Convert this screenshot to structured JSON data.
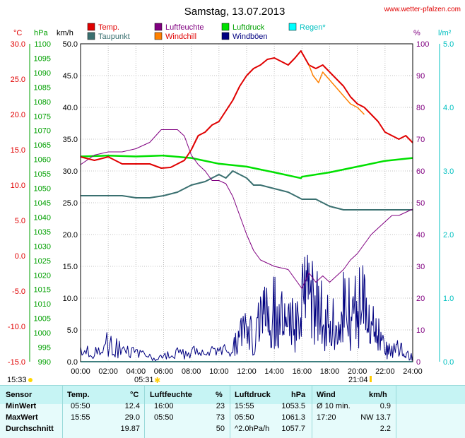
{
  "title": "Samstag, 13.07.2013",
  "website": "www.wetter-pfalzen.com",
  "colors": {
    "temp": "#e00000",
    "dewpoint": "#3a7070",
    "humidity": "#800080",
    "windchill": "#ff8000",
    "pressure": "#00e000",
    "gust": "#000080",
    "rain": "#00ffff",
    "axis_celsius": "#e00000",
    "axis_hpa": "#00a000",
    "axis_kmh": "#000000",
    "axis_percent": "#800080",
    "axis_rain": "#00c0c0"
  },
  "legend": {
    "temp": "Temp.",
    "dewpoint": "Taupunkt",
    "humidity": "Luftfeuchte",
    "windchill": "Windchill",
    "pressure": "Luftdruck",
    "gust": "Windböen",
    "rain": "Regen*"
  },
  "axis_units": {
    "celsius": "°C",
    "hpa": "hPa",
    "kmh": "km/h",
    "percent": "%",
    "rain": "l/m²"
  },
  "axes": {
    "celsius_ticks": [
      "30.0",
      "25.0",
      "20.0",
      "15.0",
      "10.0",
      "5.0",
      "0.0",
      "-5.0",
      "-10.0",
      "-15.0"
    ],
    "hpa_ticks": [
      "1100",
      "1095",
      "1090",
      "1085",
      "1080",
      "1075",
      "1070",
      "1065",
      "1060",
      "1055",
      "1050",
      "1045",
      "1040",
      "1035",
      "1030",
      "1025",
      "1020",
      "1015",
      "1010",
      "1005",
      "1000",
      "995",
      "990"
    ],
    "kmh_ticks": [
      "50.0",
      "45.0",
      "40.0",
      "35.0",
      "30.0",
      "25.0",
      "20.0",
      "15.0",
      "10.0",
      "5.0",
      "0.0"
    ],
    "percent_ticks": [
      "100",
      "90",
      "80",
      "70",
      "60",
      "50",
      "40",
      "30",
      "20",
      "10",
      "0"
    ],
    "rain_ticks": [
      "5.0",
      "4.0",
      "3.0",
      "2.0",
      "1.0",
      "0.0"
    ],
    "time_ticks": [
      "00:00",
      "02:00",
      "04:00",
      "06:00",
      "08:00",
      "10:00",
      "12:00",
      "14:00",
      "16:00",
      "18:00",
      "20:00",
      "22:00",
      "24:00"
    ]
  },
  "sun": {
    "sunrise": "05:31",
    "sunset": "21:04"
  },
  "moon": {
    "moonrise": "15:33"
  },
  "chart_data": {
    "type": "line",
    "title": "Samstag, 13.07.2013",
    "x_unit": "hours",
    "xlim": [
      0,
      24
    ],
    "series": [
      {
        "name": "Temp.",
        "axis": "celsius",
        "x": [
          0,
          1,
          2,
          3,
          4,
          5,
          5.83,
          6.5,
          7,
          7.5,
          8,
          8.5,
          9,
          9.5,
          10,
          10.5,
          11,
          11.5,
          12,
          12.5,
          13,
          13.5,
          14,
          14.5,
          15,
          15.5,
          15.92,
          16.5,
          17,
          17.5,
          18,
          18.5,
          19,
          19.5,
          20,
          20.5,
          21,
          21.5,
          22,
          22.5,
          23,
          23.5,
          24
        ],
        "y": [
          14.0,
          13.5,
          14.0,
          13.0,
          13.0,
          13.0,
          12.4,
          12.5,
          13.0,
          13.5,
          15.0,
          17.0,
          17.5,
          18.5,
          19.0,
          20.5,
          22.0,
          24.0,
          25.5,
          26.5,
          27.0,
          27.8,
          28.0,
          27.5,
          27.0,
          28.0,
          29.0,
          27.0,
          26.5,
          27.0,
          26.0,
          25.0,
          24.0,
          22.5,
          21.5,
          21.0,
          20.0,
          19.0,
          17.5,
          17.0,
          16.5,
          17.0,
          16.0
        ]
      },
      {
        "name": "Taupunkt",
        "axis": "celsius",
        "x": [
          0,
          1,
          2,
          3,
          4,
          5,
          6,
          7,
          8,
          9,
          10,
          10.5,
          11,
          11.5,
          12,
          12.5,
          13,
          14,
          15,
          16,
          17,
          18,
          19,
          20,
          21,
          22,
          23,
          24
        ],
        "y": [
          8.5,
          8.5,
          8.5,
          8.5,
          8.2,
          8.2,
          8.5,
          9.0,
          10.0,
          10.5,
          11.5,
          11.0,
          12.0,
          11.5,
          11.0,
          10.0,
          10.0,
          9.5,
          9.0,
          8.0,
          8.0,
          7.0,
          6.5,
          6.5,
          6.5,
          6.5,
          6.5,
          6.5
        ]
      },
      {
        "name": "Luftfeuchte",
        "axis": "percent",
        "x": [
          0,
          1,
          2,
          3,
          4,
          5,
          5.83,
          6.5,
          7,
          7.5,
          8,
          8.5,
          9,
          9.5,
          10,
          10.5,
          11,
          11.5,
          12,
          12.5,
          13,
          13.5,
          14,
          15,
          16,
          16.5,
          17,
          17.5,
          18,
          18.5,
          19,
          19.5,
          20,
          20.5,
          21,
          21.5,
          22,
          22.5,
          23,
          23.5,
          24
        ],
        "y": [
          62,
          65,
          66,
          66,
          67,
          69,
          73,
          73,
          73,
          71,
          65,
          62,
          60,
          57,
          57,
          56,
          52,
          46,
          40,
          35,
          32,
          31,
          30,
          29,
          23,
          28,
          25,
          27,
          25,
          27,
          29,
          32,
          34,
          37,
          40,
          42,
          44,
          46,
          46,
          47,
          48
        ]
      },
      {
        "name": "Windchill",
        "axis": "celsius",
        "x": [
          16.5,
          16.8,
          17.2,
          17.5,
          19.5,
          20.0,
          20.5
        ],
        "y": [
          27.0,
          25.5,
          24.5,
          26.0,
          21.5,
          21.0,
          20.0
        ]
      },
      {
        "name": "Luftdruck",
        "axis": "hpa",
        "x": [
          0,
          2,
          4,
          5.83,
          6,
          8,
          10,
          12,
          14,
          15.92,
          16,
          18,
          20,
          22,
          24
        ],
        "y": [
          1061.0,
          1061.3,
          1061.0,
          1061.3,
          1061.3,
          1060.5,
          1058.5,
          1057.5,
          1055.5,
          1053.5,
          1054.0,
          1055.5,
          1057.5,
          1059.5,
          1060.5
        ]
      },
      {
        "name": "Windböen",
        "axis": "kmh",
        "style": "spiky",
        "x": [
          0,
          1,
          2,
          3,
          4,
          5,
          6,
          7,
          8,
          9,
          10,
          11,
          11.5,
          12,
          12.5,
          13,
          13.5,
          14,
          14.5,
          15,
          15.5,
          16,
          16.5,
          17,
          17.5,
          18,
          18.5,
          19,
          19.5,
          20,
          20.5,
          21,
          21.5,
          22,
          22.5,
          23,
          23.5,
          24
        ],
        "y": [
          2,
          2,
          5,
          2,
          2,
          1,
          1,
          2,
          2,
          2,
          2,
          3,
          5,
          8,
          6,
          9,
          10,
          11,
          9,
          8,
          8,
          13,
          14,
          15,
          11,
          8,
          10,
          13,
          11,
          12,
          13,
          8,
          6,
          3,
          2,
          3,
          2,
          1
        ]
      },
      {
        "name": "Regen*",
        "axis": "rain",
        "x": [
          0,
          24
        ],
        "y": [
          0.0,
          0.0
        ]
      }
    ]
  },
  "stats": {
    "headers": {
      "sensor": "Sensor",
      "temp": "Temp.",
      "temp_unit": "°C",
      "hum": "Luftfeuchte",
      "hum_unit": "%",
      "press": "Luftdruck",
      "press_unit": "hPa",
      "wind": "Wind",
      "wind_unit": "km/h"
    },
    "rows": [
      {
        "label": "MinWert",
        "temp_time": "05:50",
        "temp": "12.4",
        "hum_time": "16:00",
        "hum": "23",
        "press_time": "15:55",
        "press": "1053.5",
        "wind_label": "Ø 10 min.",
        "wind": "0.9"
      },
      {
        "label": "MaxWert",
        "temp_time": "15:55",
        "temp": "29.0",
        "hum_time": "05:50",
        "hum": "73",
        "press_time": "05:50",
        "press": "1061.3",
        "wind_label": "17:20",
        "wind": "NW 13.7"
      },
      {
        "label": "Durchschnitt",
        "temp_time": "",
        "temp": "19.87",
        "hum_time": "",
        "hum": "50",
        "press_time": "^2.0hPa/h",
        "press": "1057.7",
        "wind_label": "",
        "wind": "2.2"
      }
    ]
  }
}
